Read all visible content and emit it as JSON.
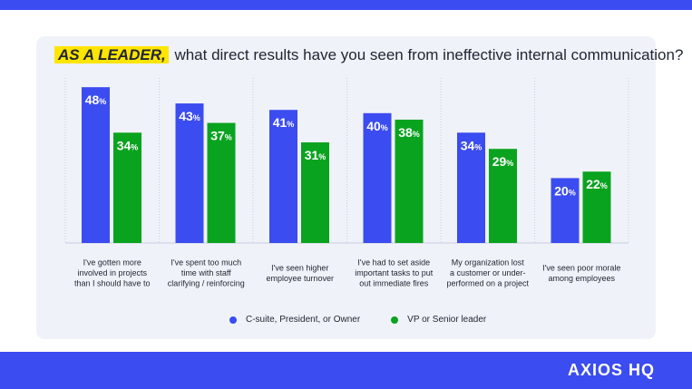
{
  "title": {
    "highlight": "AS A LEADER,",
    "rest": "what direct results have you seen from ineffective internal communication?"
  },
  "brand": "AXIOS HQ",
  "colors": {
    "series1": "#3b4cf0",
    "series2": "#0aa31f",
    "highlight": "#ffe500",
    "band": "#3b4cf0",
    "card": "#f0f2f9"
  },
  "chart_data": {
    "type": "bar",
    "categories": [
      [
        "I've gotten more",
        "involved in projects",
        "than I should have to"
      ],
      [
        "I've spent too much",
        "time with staff",
        "clarifying / reinforcing"
      ],
      [
        "I've seen higher",
        "employee turnover"
      ],
      [
        "I've had to set aside",
        "important tasks to put",
        "out immediate fires"
      ],
      [
        "My organization lost",
        "a customer or under-",
        "performed on a project"
      ],
      [
        "I've seen poor morale",
        "among employees"
      ]
    ],
    "series": [
      {
        "name": "C-suite, President, or Owner",
        "values": [
          48,
          43,
          41,
          40,
          34,
          20
        ]
      },
      {
        "name": "VP or Senior leader",
        "values": [
          34,
          37,
          31,
          38,
          29,
          22
        ]
      }
    ],
    "value_suffix": "%",
    "ylim": [
      0,
      50
    ],
    "legend": "bottom"
  }
}
